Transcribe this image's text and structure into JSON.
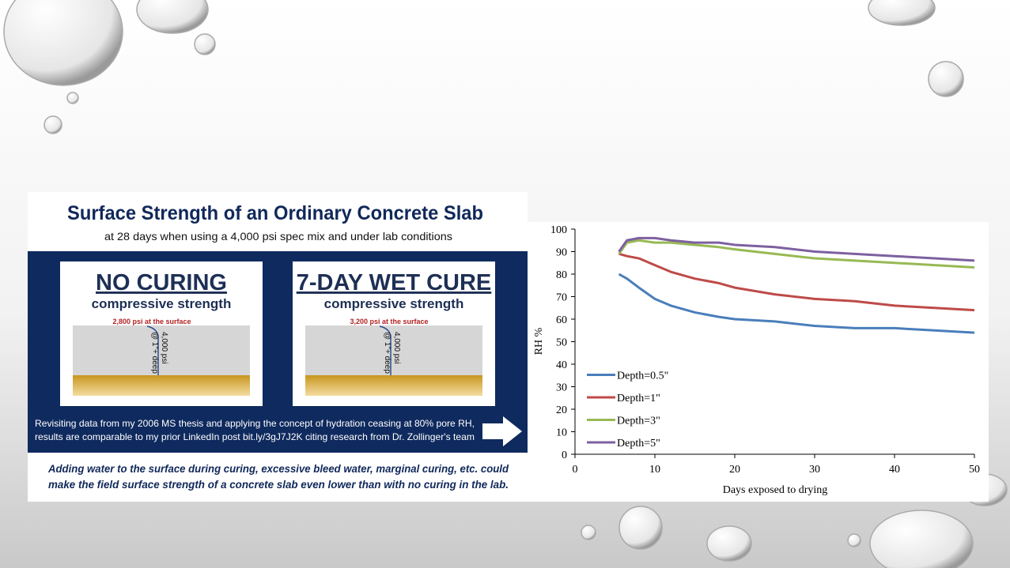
{
  "infographic": {
    "title": "Surface Strength of an Ordinary Concrete Slab",
    "subtitle": "at 28 days when using a 4,000 psi spec mix and under lab conditions",
    "panels": [
      {
        "heading": "NO CURING",
        "subheading": "compressive strength",
        "surface": "2,800 psi at the surface",
        "deep_1": "4,000 psi",
        "deep_2": "@ 1\"+ deep"
      },
      {
        "heading": "7-DAY WET CURE",
        "subheading": "compressive strength",
        "surface": "3,200 psi at the surface",
        "deep_1": "4,000 psi",
        "deep_2": "@ 1\"+ deep"
      }
    ],
    "note_lines": [
      "Revisiting data from my 2006 MS thesis and applying the concept of hydration ceasing at 80% pore RH,",
      "results are comparable to my prior LinkedIn post bit.ly/3gJ7J2K citing research from Dr. Zollinger's team"
    ],
    "footer_lines": [
      "Adding water to the surface during curing, excessive bleed water, marginal curing, etc. could",
      "make the field surface strength of a concrete slab even lower than with no curing in the lab."
    ]
  },
  "chart_data": {
    "type": "line",
    "x_label": "Days exposed to drying",
    "y_label": "RH %",
    "x": [
      5.5,
      6.5,
      8,
      10,
      12,
      15,
      18,
      20,
      25,
      30,
      35,
      40,
      45,
      50
    ],
    "series": [
      {
        "name": "Depth=0.5\"",
        "color": "#4a7ebb",
        "values": [
          80,
          78,
          74,
          69,
          66,
          63,
          61,
          60,
          59,
          57,
          56,
          56,
          55,
          54
        ]
      },
      {
        "name": "Depth=1\"",
        "color": "#be4b48",
        "values": [
          89,
          88,
          87,
          84,
          81,
          78,
          76,
          74,
          71,
          69,
          68,
          66,
          65,
          64
        ]
      },
      {
        "name": "Depth=3\"",
        "color": "#98b954",
        "values": [
          89,
          94,
          95,
          94,
          94,
          93,
          92,
          91,
          89,
          87,
          86,
          85,
          84,
          83
        ]
      },
      {
        "name": "Depth=5\"",
        "color": "#7d60a0",
        "values": [
          90,
          95,
          96,
          96,
          95,
          94,
          94,
          93,
          92,
          90,
          89,
          88,
          87,
          86
        ]
      }
    ],
    "xlim": [
      0,
      50
    ],
    "xticks": [
      0,
      10,
      20,
      30,
      40,
      50
    ],
    "ylim": [
      0,
      100
    ],
    "yticks": [
      0,
      10,
      20,
      30,
      40,
      50,
      60,
      70,
      80,
      90,
      100
    ],
    "legend": "lower left"
  }
}
